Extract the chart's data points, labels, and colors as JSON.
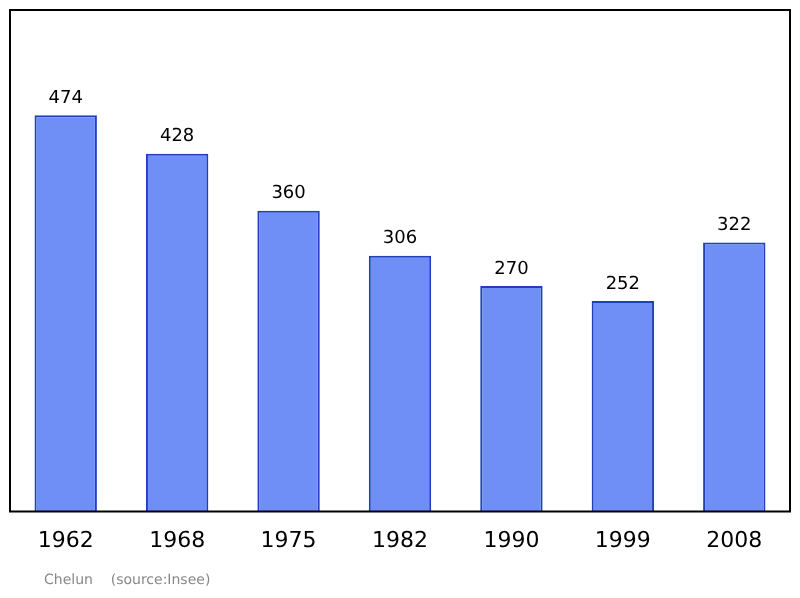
{
  "chart_data": {
    "type": "bar",
    "categories": [
      "1962",
      "1968",
      "1975",
      "1982",
      "1990",
      "1999",
      "2008"
    ],
    "values": [
      474,
      428,
      360,
      306,
      270,
      252,
      322
    ],
    "color": "#6f8ff6",
    "data_labels": true,
    "grid": false,
    "legend": false,
    "annotations": [
      "Chelun    (source:Insee)"
    ]
  }
}
